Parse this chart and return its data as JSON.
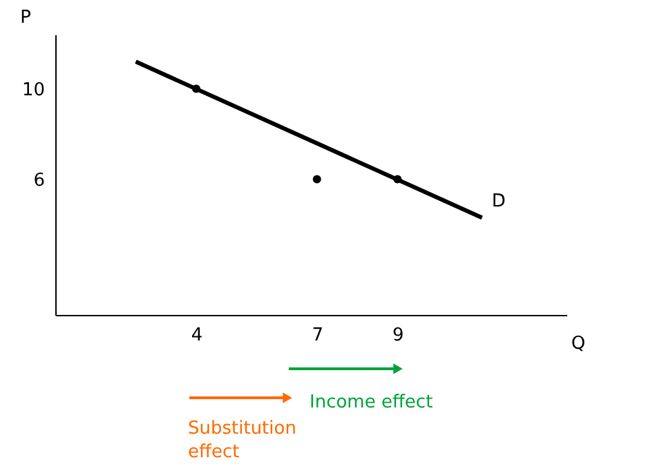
{
  "chart_data": {
    "type": "line",
    "xlabel": "Q",
    "ylabel": "P",
    "xlim": [
      0.5,
      13.2
    ],
    "ylim": [
      0,
      12.4
    ],
    "xticks": [
      4,
      7,
      9
    ],
    "yticks": [
      6,
      10
    ],
    "grid": false,
    "series": [
      {
        "name": "D",
        "color": "#000000",
        "x": [
          2.5,
          11.1
        ],
        "values": [
          11.2,
          4.3
        ]
      },
      {
        "type": "scatter",
        "color": "#000000",
        "marker": "circle",
        "x": [
          4,
          7,
          9
        ],
        "values": [
          10,
          6,
          6
        ]
      }
    ],
    "annotations": [
      "Substitution effect",
      "Income effect"
    ]
  }
}
